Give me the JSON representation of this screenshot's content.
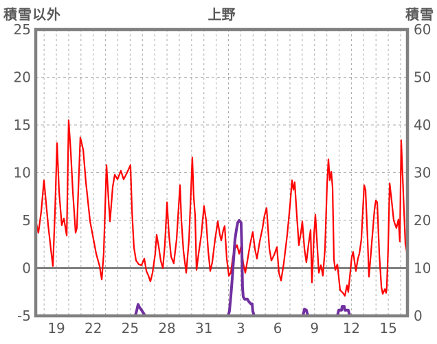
{
  "chart_data": {
    "type": "line",
    "title": "上野",
    "left_axis": {
      "label": "積雪以外",
      "ticks": [
        "25",
        "20",
        "15",
        "10",
        "5",
        "0",
        "-5"
      ],
      "tick_values": [
        25,
        20,
        15,
        10,
        5,
        0,
        -5
      ],
      "range": [
        -5,
        25
      ],
      "dashed_grid_values": [
        20,
        15,
        10,
        5
      ],
      "zero_line_value": 0
    },
    "right_axis": {
      "label": "積雪",
      "ticks": [
        "60",
        "50",
        "40",
        "30",
        "20",
        "10",
        "0"
      ],
      "tick_values": [
        60,
        50,
        40,
        30,
        20,
        10,
        0
      ],
      "range": [
        0,
        60
      ]
    },
    "x_axis": {
      "tick_labels": [
        "19",
        "22",
        "25",
        "28",
        "31",
        "3",
        "6",
        "9",
        "12",
        "15"
      ],
      "tick_positions_days": [
        1.68,
        4.68,
        7.68,
        10.68,
        13.68,
        16.68,
        19.68,
        22.68,
        25.68,
        28.68
      ],
      "range_days": [
        0,
        30.24
      ],
      "grid_first_day": 0.68,
      "grid_interval_days": 1
    },
    "colors": {
      "temperature_series": "#ff0000",
      "snow_series": "#7030a0",
      "grid": "#a8a8a8",
      "border": "#808080",
      "zero_line": "#808080",
      "text": "#595959",
      "background": "#ffffff"
    },
    "series": [
      {
        "name": "積雪以外",
        "axis": "left",
        "color": "#ff0000",
        "points": [
          [
            0,
            5.0
          ],
          [
            0.22,
            3.7
          ],
          [
            0.45,
            6.0
          ],
          [
            0.67,
            9.2
          ],
          [
            1.01,
            4.5
          ],
          [
            1.23,
            2.0
          ],
          [
            1.4,
            0.2
          ],
          [
            1.57,
            6.0
          ],
          [
            1.73,
            13.1
          ],
          [
            1.9,
            8.0
          ],
          [
            2.12,
            4.5
          ],
          [
            2.29,
            5.2
          ],
          [
            2.52,
            3.4
          ],
          [
            2.68,
            15.5
          ],
          [
            2.85,
            12.2
          ],
          [
            3.02,
            8.0
          ],
          [
            3.24,
            3.7
          ],
          [
            3.35,
            4.2
          ],
          [
            3.63,
            13.7
          ],
          [
            3.86,
            12.4
          ],
          [
            4.08,
            9.0
          ],
          [
            4.42,
            4.9
          ],
          [
            4.7,
            3.0
          ],
          [
            4.92,
            1.5
          ],
          [
            5.2,
            0.2
          ],
          [
            5.37,
            -1.2
          ],
          [
            5.53,
            1.5
          ],
          [
            5.76,
            10.8
          ],
          [
            5.93,
            7.0
          ],
          [
            6.04,
            4.9
          ],
          [
            6.26,
            8.5
          ],
          [
            6.43,
            9.8
          ],
          [
            6.65,
            9.3
          ],
          [
            6.93,
            10.2
          ],
          [
            7.15,
            9.3
          ],
          [
            7.43,
            10.0
          ],
          [
            7.71,
            10.8
          ],
          [
            7.83,
            6.0
          ],
          [
            7.99,
            2.2
          ],
          [
            8.16,
            0.8
          ],
          [
            8.38,
            0.4
          ],
          [
            8.61,
            0.3
          ],
          [
            8.83,
            1.0
          ],
          [
            9.0,
            -0.3
          ],
          [
            9.17,
            -0.8
          ],
          [
            9.33,
            -1.4
          ],
          [
            9.5,
            -0.5
          ],
          [
            9.72,
            1.5
          ],
          [
            9.84,
            3.5
          ],
          [
            10.01,
            2.2
          ],
          [
            10.17,
            0.8
          ],
          [
            10.34,
            0.0
          ],
          [
            10.51,
            2.5
          ],
          [
            10.68,
            6.9
          ],
          [
            10.84,
            3.5
          ],
          [
            11.01,
            1.2
          ],
          [
            11.23,
            0.5
          ],
          [
            11.46,
            3.0
          ],
          [
            11.74,
            8.7
          ],
          [
            11.85,
            5.0
          ],
          [
            12.02,
            1.8
          ],
          [
            12.24,
            -0.5
          ],
          [
            12.47,
            3.0
          ],
          [
            12.74,
            11.6
          ],
          [
            12.85,
            7.5
          ],
          [
            12.97,
            5.5
          ],
          [
            13.08,
            -0.2
          ],
          [
            13.25,
            1.5
          ],
          [
            13.47,
            3.5
          ],
          [
            13.69,
            6.5
          ],
          [
            13.86,
            5.0
          ],
          [
            14.03,
            1.8
          ],
          [
            14.2,
            -0.3
          ],
          [
            14.36,
            0.6
          ],
          [
            14.59,
            3.0
          ],
          [
            14.81,
            4.9
          ],
          [
            14.98,
            3.5
          ],
          [
            15.09,
            2.9
          ],
          [
            15.26,
            4.0
          ],
          [
            15.37,
            4.4
          ],
          [
            15.54,
            1.0
          ],
          [
            15.71,
            -0.8
          ],
          [
            15.87,
            -0.5
          ],
          [
            16.04,
            1.2
          ],
          [
            16.21,
            2.0
          ],
          [
            16.38,
            2.4
          ],
          [
            16.55,
            1.5
          ],
          [
            16.71,
            2.3
          ],
          [
            16.88,
            0.5
          ],
          [
            17.05,
            -0.5
          ],
          [
            17.22,
            0.8
          ],
          [
            17.44,
            2.5
          ],
          [
            17.66,
            3.8
          ],
          [
            17.83,
            2.0
          ],
          [
            18.0,
            1.0
          ],
          [
            18.22,
            2.8
          ],
          [
            18.45,
            4.2
          ],
          [
            18.61,
            5.5
          ],
          [
            18.78,
            6.3
          ],
          [
            19.01,
            2.0
          ],
          [
            19.17,
            0.8
          ],
          [
            19.4,
            1.4
          ],
          [
            19.62,
            2.2
          ],
          [
            19.79,
            -0.5
          ],
          [
            19.96,
            -1.3
          ],
          [
            20.18,
            0.5
          ],
          [
            20.46,
            3.5
          ],
          [
            20.68,
            6.5
          ],
          [
            20.85,
            9.2
          ],
          [
            20.96,
            8.2
          ],
          [
            21.07,
            9.0
          ],
          [
            21.24,
            5.5
          ],
          [
            21.41,
            2.4
          ],
          [
            21.58,
            3.8
          ],
          [
            21.69,
            4.9
          ],
          [
            21.86,
            2.0
          ],
          [
            22.02,
            0.6
          ],
          [
            22.19,
            2.5
          ],
          [
            22.36,
            4.0
          ],
          [
            22.47,
            -1.5
          ],
          [
            22.64,
            3.5
          ],
          [
            22.75,
            5.6
          ],
          [
            22.86,
            3.2
          ],
          [
            23.03,
            -0.5
          ],
          [
            23.2,
            0.3
          ],
          [
            23.36,
            -0.8
          ],
          [
            23.53,
            2.0
          ],
          [
            23.7,
            8.8
          ],
          [
            23.81,
            11.4
          ],
          [
            23.92,
            9.2
          ],
          [
            24.04,
            10.1
          ],
          [
            24.15,
            8.5
          ],
          [
            24.26,
            0.9
          ],
          [
            24.37,
            -0.2
          ],
          [
            24.54,
            0.4
          ],
          [
            24.76,
            -2.3
          ],
          [
            24.99,
            -2.6
          ],
          [
            25.15,
            -2.9
          ],
          [
            25.32,
            -1.8
          ],
          [
            25.43,
            -2.5
          ],
          [
            25.71,
            1.2
          ],
          [
            25.82,
            1.7
          ],
          [
            26.05,
            -0.3
          ],
          [
            26.21,
            1.0
          ],
          [
            26.33,
            1.5
          ],
          [
            26.49,
            3.0
          ],
          [
            26.72,
            8.7
          ],
          [
            26.83,
            8.2
          ],
          [
            27.0,
            3.0
          ],
          [
            27.11,
            -0.9
          ],
          [
            27.33,
            2.5
          ],
          [
            27.56,
            6.2
          ],
          [
            27.67,
            7.1
          ],
          [
            27.78,
            6.9
          ],
          [
            27.95,
            1.5
          ],
          [
            28.12,
            -2.0
          ],
          [
            28.23,
            -2.7
          ],
          [
            28.4,
            -2.2
          ],
          [
            28.51,
            -2.6
          ],
          [
            28.56,
            -2.0
          ],
          [
            28.67,
            2.0
          ],
          [
            28.79,
            8.9
          ],
          [
            28.96,
            7.0
          ],
          [
            29.12,
            5.0
          ],
          [
            29.34,
            4.2
          ],
          [
            29.51,
            5.1
          ],
          [
            29.62,
            2.8
          ],
          [
            29.73,
            13.4
          ],
          [
            29.84,
            10.0
          ],
          [
            29.96,
            6.0
          ],
          [
            30.07,
            2.5
          ],
          [
            30.24,
            1.3
          ]
        ]
      },
      {
        "name": "積雪",
        "axis": "right",
        "color": "#7030a0",
        "points": [
          [
            0,
            0
          ],
          [
            8.1,
            0
          ],
          [
            8.22,
            1.2
          ],
          [
            8.33,
            2.4
          ],
          [
            8.44,
            1.8
          ],
          [
            8.61,
            1.2
          ],
          [
            8.78,
            0.5
          ],
          [
            8.89,
            0
          ],
          [
            15.65,
            0
          ],
          [
            15.76,
            1
          ],
          [
            15.87,
            4
          ],
          [
            15.99,
            8
          ],
          [
            16.1,
            12
          ],
          [
            16.21,
            16
          ],
          [
            16.32,
            18
          ],
          [
            16.43,
            19.5
          ],
          [
            16.55,
            20
          ],
          [
            16.71,
            19.5
          ],
          [
            16.77,
            14
          ],
          [
            16.82,
            6
          ],
          [
            16.88,
            4
          ],
          [
            16.99,
            3.5
          ],
          [
            17.22,
            3.5
          ],
          [
            17.33,
            3
          ],
          [
            17.5,
            2.5
          ],
          [
            17.61,
            2.5
          ],
          [
            17.66,
            1
          ],
          [
            17.77,
            0
          ],
          [
            21.74,
            0
          ],
          [
            21.86,
            1.4
          ],
          [
            22.02,
            1.2
          ],
          [
            22.14,
            0
          ],
          [
            24.54,
            0
          ],
          [
            24.65,
            1.2
          ],
          [
            24.88,
            1.2
          ],
          [
            24.93,
            2
          ],
          [
            25.1,
            2
          ],
          [
            25.15,
            1.2
          ],
          [
            25.43,
            1.2
          ],
          [
            25.55,
            0
          ],
          [
            30.24,
            0
          ]
        ]
      }
    ]
  }
}
